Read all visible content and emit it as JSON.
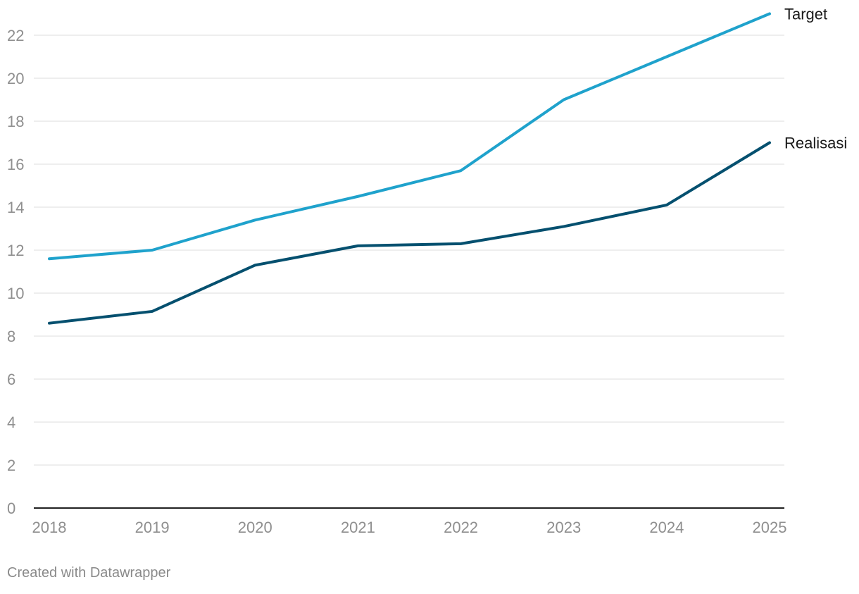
{
  "chart_data": {
    "type": "line",
    "x": [
      "2018",
      "2019",
      "2020",
      "2021",
      "2022",
      "2023",
      "2024",
      "2025"
    ],
    "series": [
      {
        "name": "Target",
        "color": "#1fa2cc",
        "values": [
          11.6,
          12.0,
          13.4,
          14.5,
          15.7,
          19.0,
          21.0,
          23.0
        ]
      },
      {
        "name": "Realisasi",
        "color": "#05506f",
        "values": [
          8.6,
          9.15,
          11.3,
          12.2,
          12.3,
          13.1,
          14.1,
          17.0
        ]
      }
    ],
    "y_ticks": [
      0,
      2,
      4,
      6,
      8,
      10,
      12,
      14,
      16,
      18,
      20,
      22
    ],
    "ylim": [
      0,
      23
    ],
    "grid": true,
    "legend": "direct labels at line ends (right)",
    "title": "",
    "xlabel": "",
    "ylabel": ""
  },
  "footer": {
    "credit": "Created with Datawrapper"
  }
}
